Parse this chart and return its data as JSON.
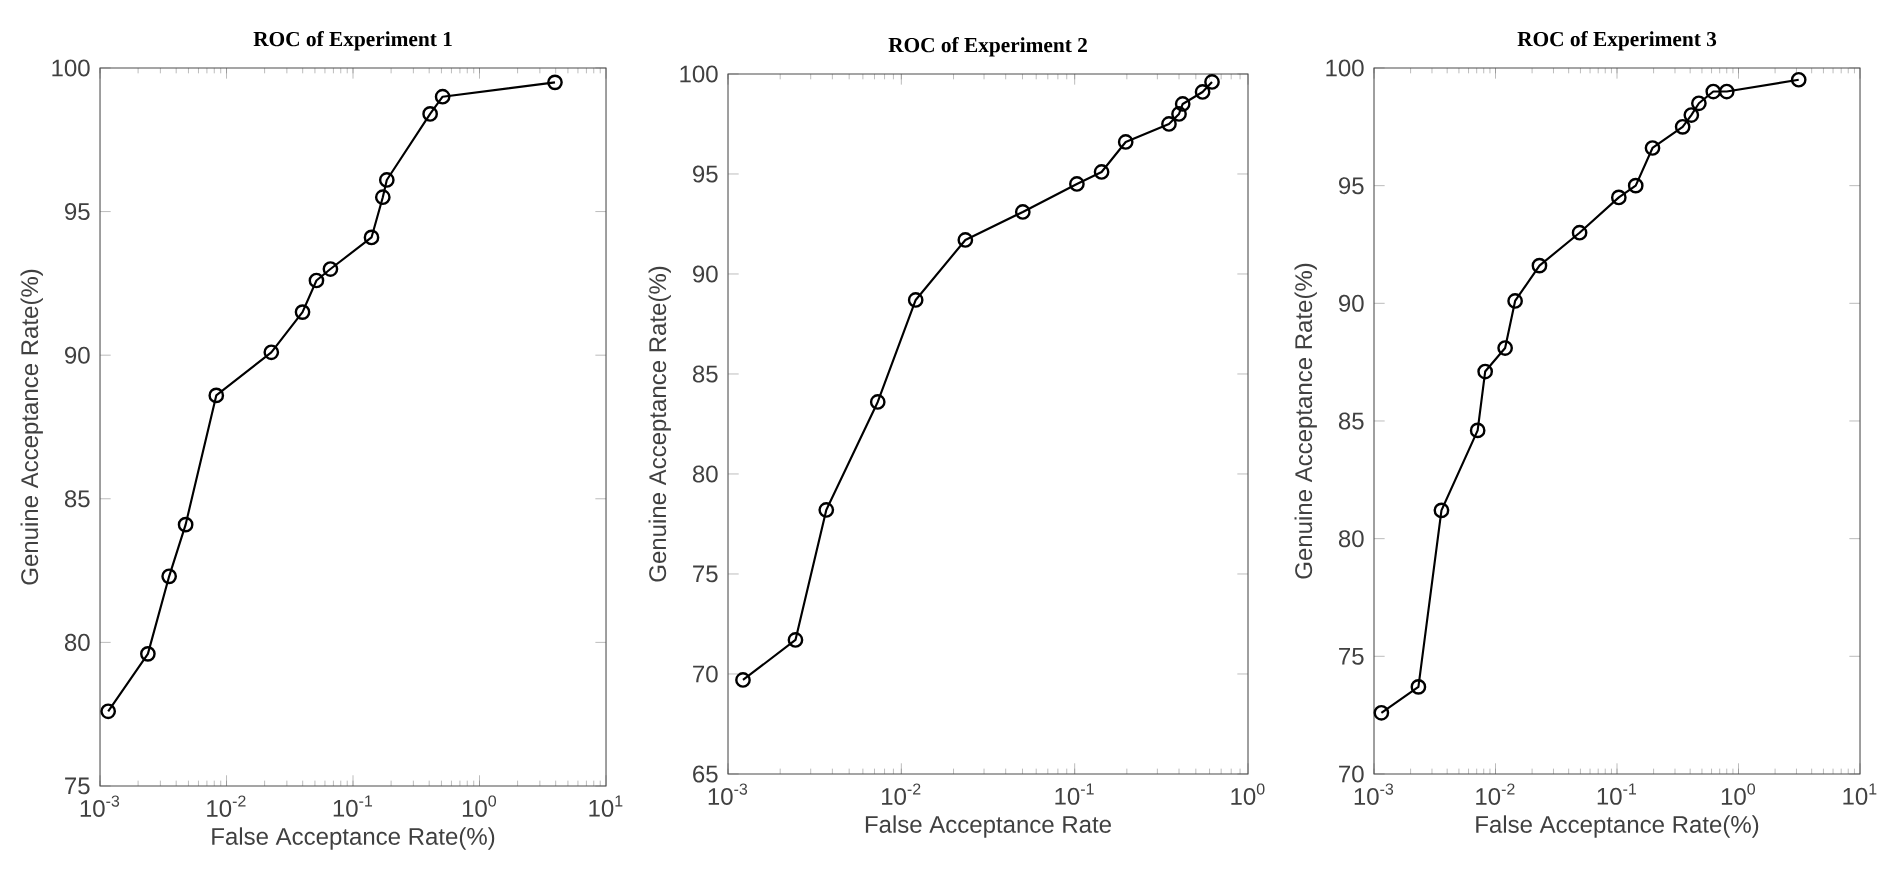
{
  "chart_data": [
    {
      "type": "line",
      "title": "ROC of Experiment 1",
      "xlabel": "False Acceptance Rate(%)",
      "ylabel": "Genuine Acceptance Rate(%)",
      "log": "x",
      "marker": "circle",
      "line_style": "solid",
      "color": "#000000",
      "x": [
        0.00116,
        0.00239,
        0.00352,
        0.00475,
        0.0083,
        0.0226,
        0.0399,
        0.0514,
        0.0663,
        0.14,
        0.172,
        0.185,
        0.407,
        0.511,
        3.95
      ],
      "values": [
        77.6,
        79.6,
        82.3,
        84.1,
        88.6,
        90.1,
        91.5,
        92.6,
        93.0,
        94.1,
        95.5,
        96.1,
        98.4,
        99.0,
        99.5
      ],
      "xlim": [
        0.001,
        10
      ],
      "ylim": [
        75,
        100
      ],
      "xticks": [
        {
          "value": 0.001,
          "label": "10$^{-3}$"
        },
        {
          "value": 0.01,
          "label": "10$^{-2}$"
        },
        {
          "value": 0.1,
          "label": "10$^{-1}$"
        },
        {
          "value": 1,
          "label": "10$^{0}$"
        },
        {
          "value": 10,
          "label": "10$^{1}$"
        }
      ],
      "yticks": [
        75,
        80,
        85,
        90,
        95,
        100
      ]
    },
    {
      "type": "line",
      "title": "ROC of Experiment 2",
      "xlabel": "False Acceptance Rate",
      "ylabel": "Genuine Acceptance Rate(%)",
      "log": "x",
      "marker": "circle",
      "line_style": "solid",
      "color": "#000000",
      "x": [
        0.00122,
        0.00245,
        0.00369,
        0.00731,
        0.0121,
        0.0234,
        0.0502,
        0.103,
        0.143,
        0.197,
        0.35,
        0.4,
        0.42,
        0.547,
        0.62
      ],
      "values": [
        69.7,
        71.7,
        78.2,
        83.6,
        88.7,
        91.7,
        93.1,
        94.5,
        95.1,
        96.6,
        97.5,
        98.0,
        98.5,
        99.1,
        99.6
      ],
      "xlim": [
        0.001,
        1
      ],
      "ylim": [
        65,
        100
      ],
      "xticks": [
        {
          "value": 0.001,
          "label": "10$^{-3}$"
        },
        {
          "value": 0.01,
          "label": "10$^{-2}$"
        },
        {
          "value": 0.1,
          "label": "10$^{-1}$"
        },
        {
          "value": 1,
          "label": "10$^{0}$"
        }
      ],
      "yticks": [
        65,
        70,
        75,
        80,
        85,
        90,
        95,
        100
      ]
    },
    {
      "type": "line",
      "title": "ROC of Experiment 3",
      "xlabel": "False Acceptance Rate(%)",
      "ylabel": "Genuine Acceptance Rate(%)",
      "log": "x",
      "marker": "circle",
      "line_style": "solid",
      "color": "#000000",
      "x": [
        0.00115,
        0.00232,
        0.00359,
        0.00713,
        0.00822,
        0.012,
        0.0145,
        0.023,
        0.0492,
        0.1035,
        0.1426,
        0.196,
        0.347,
        0.409,
        0.472,
        0.62,
        0.8,
        3.13
      ],
      "values": [
        72.6,
        73.7,
        81.2,
        84.6,
        87.1,
        88.1,
        90.1,
        91.6,
        93.0,
        94.5,
        95.0,
        96.6,
        97.5,
        98.0,
        98.5,
        99.0,
        99.0,
        99.5
      ],
      "xlim": [
        0.001,
        10
      ],
      "ylim": [
        70,
        100
      ],
      "xticks": [
        {
          "value": 0.001,
          "label": "10$^{-3}$"
        },
        {
          "value": 0.01,
          "label": "10$^{-2}$"
        },
        {
          "value": 0.1,
          "label": "10$^{-1}$"
        },
        {
          "value": 1,
          "label": "10$^{0}$"
        },
        {
          "value": 10,
          "label": "10$^{1}$"
        }
      ],
      "yticks": [
        70,
        75,
        80,
        85,
        90,
        95,
        100
      ]
    }
  ]
}
